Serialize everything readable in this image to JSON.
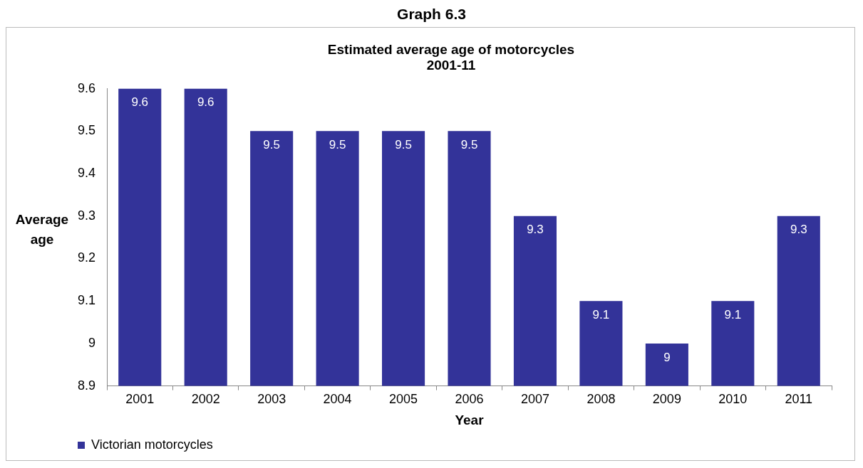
{
  "chart_data": {
    "type": "bar",
    "title": "Graph 6.3",
    "subtitle": "Estimated average age of motorcycles\n2001-11",
    "xlabel": "Year",
    "ylabel": "Average age",
    "categories": [
      "2001",
      "2002",
      "2003",
      "2004",
      "2005",
      "2006",
      "2007",
      "2008",
      "2009",
      "2010",
      "2011"
    ],
    "series": [
      {
        "name": "Victorian motorcycles",
        "color": "#333399",
        "values": [
          9.6,
          9.6,
          9.5,
          9.5,
          9.5,
          9.5,
          9.3,
          9.1,
          9,
          9.1,
          9.3
        ]
      }
    ],
    "ylim": [
      8.9,
      9.6
    ],
    "yticks": [
      8.9,
      9,
      9.1,
      9.2,
      9.3,
      9.4,
      9.5,
      9.6
    ],
    "data_labels": true,
    "legend": "bottom left"
  }
}
